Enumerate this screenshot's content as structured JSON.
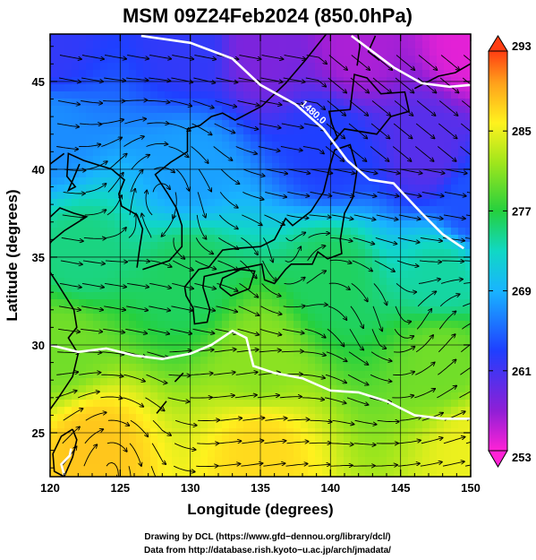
{
  "chart_data": {
    "type": "heatmap",
    "title": "MSM 09Z24Feb2024 (850.0hPa)",
    "xlabel": "Longitude (degrees)",
    "ylabel": "Latitude  (degrees)",
    "xlim": [
      120,
      150
    ],
    "ylim": [
      22.5,
      47.7
    ],
    "x_ticks": [
      120,
      125,
      130,
      135,
      140,
      145,
      150
    ],
    "y_ticks": [
      25,
      30,
      35,
      40,
      45
    ],
    "grid": true,
    "colorbar": {
      "min": 253,
      "max": 293,
      "tick_labels": [
        293,
        285,
        277,
        269,
        261,
        253
      ]
    },
    "temperature_field": [
      {
        "lon": 120,
        "lat": 47,
        "value": 262
      },
      {
        "lon": 130,
        "lat": 47,
        "value": 262
      },
      {
        "lon": 135,
        "lat": 47,
        "value": 258
      },
      {
        "lon": 142,
        "lat": 47,
        "value": 256
      },
      {
        "lon": 150,
        "lat": 47,
        "value": 254
      },
      {
        "lon": 120,
        "lat": 42,
        "value": 267
      },
      {
        "lon": 130,
        "lat": 40,
        "value": 268
      },
      {
        "lon": 140,
        "lat": 41,
        "value": 263
      },
      {
        "lon": 147,
        "lat": 41,
        "value": 260
      },
      {
        "lon": 150,
        "lat": 38,
        "value": 264
      },
      {
        "lon": 122,
        "lat": 35,
        "value": 275
      },
      {
        "lon": 130,
        "lat": 34,
        "value": 276
      },
      {
        "lon": 140,
        "lat": 34,
        "value": 276
      },
      {
        "lon": 148,
        "lat": 34,
        "value": 274
      },
      {
        "lon": 121,
        "lat": 30,
        "value": 280
      },
      {
        "lon": 135,
        "lat": 29,
        "value": 281
      },
      {
        "lon": 148,
        "lat": 29,
        "value": 280
      },
      {
        "lon": 123,
        "lat": 24,
        "value": 288
      },
      {
        "lon": 135,
        "lat": 24,
        "value": 287
      },
      {
        "lon": 150,
        "lat": 24,
        "value": 285
      }
    ],
    "contours": [
      {
        "label": "1480.0",
        "path": [
          [
            126.5,
            47.6
          ],
          [
            130,
            47.2
          ],
          [
            133,
            46.3
          ],
          [
            135,
            44.8
          ],
          [
            137.5,
            43.7
          ],
          [
            139.5,
            42.3
          ],
          [
            141.2,
            40.5
          ],
          [
            142.8,
            39.4
          ],
          [
            144.5,
            39.2
          ],
          [
            146.5,
            37.5
          ],
          [
            148,
            36.3
          ],
          [
            149.5,
            35.5
          ]
        ]
      },
      {
        "label": "",
        "path": [
          [
            141.5,
            47.6
          ],
          [
            143,
            46.7
          ],
          [
            144.5,
            45.8
          ],
          [
            146.5,
            44.9
          ],
          [
            148.5,
            44.7
          ],
          [
            150,
            44.8
          ]
        ]
      },
      {
        "label": "",
        "path": [
          [
            120,
            30
          ],
          [
            122,
            29.6
          ],
          [
            124,
            29.8
          ],
          [
            126,
            29.4
          ],
          [
            128,
            29.2
          ],
          [
            130,
            29.5
          ],
          [
            131.5,
            30
          ],
          [
            133,
            30.8
          ],
          [
            134,
            30.4
          ],
          [
            134.5,
            28.8
          ],
          [
            136,
            28.4
          ],
          [
            138,
            28.1
          ],
          [
            140,
            27.4
          ],
          [
            142,
            27.3
          ],
          [
            144,
            26.8
          ],
          [
            146,
            26.0
          ],
          [
            148,
            25.8
          ],
          [
            150,
            25.8
          ]
        ]
      },
      {
        "label": "",
        "path": [
          [
            121,
            22.6
          ],
          [
            120.8,
            23.2
          ],
          [
            121.4,
            23.7
          ],
          [
            121.5,
            24.1
          ]
        ]
      }
    ]
  },
  "credits": {
    "line1": "Drawing by DCL (https://www.gfd−dennou.org/library/dcl/)",
    "line2": "Data from http://database.rish.kyoto−u.ac.jp/arch/jmadata/"
  }
}
